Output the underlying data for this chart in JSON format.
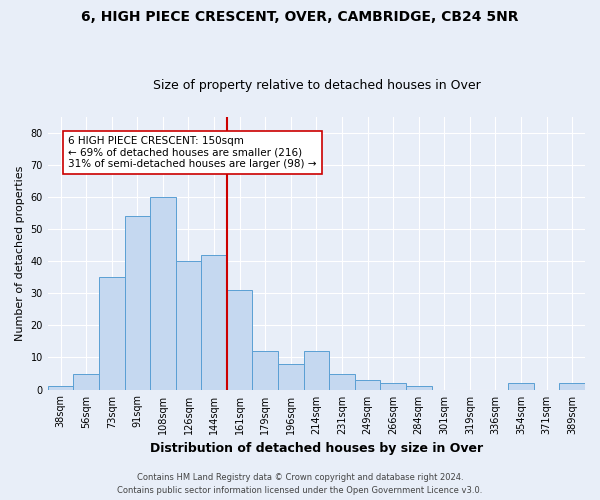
{
  "title": "6, HIGH PIECE CRESCENT, OVER, CAMBRIDGE, CB24 5NR",
  "subtitle": "Size of property relative to detached houses in Over",
  "xlabel": "Distribution of detached houses by size in Over",
  "ylabel": "Number of detached properties",
  "categories": [
    "38sqm",
    "56sqm",
    "73sqm",
    "91sqm",
    "108sqm",
    "126sqm",
    "144sqm",
    "161sqm",
    "179sqm",
    "196sqm",
    "214sqm",
    "231sqm",
    "249sqm",
    "266sqm",
    "284sqm",
    "301sqm",
    "319sqm",
    "336sqm",
    "354sqm",
    "371sqm",
    "389sqm"
  ],
  "values": [
    1,
    5,
    35,
    54,
    60,
    40,
    42,
    31,
    12,
    8,
    12,
    5,
    3,
    2,
    1,
    0,
    0,
    0,
    2,
    0,
    2
  ],
  "bar_color": "#c5d8f0",
  "bar_edge_color": "#5a9fd4",
  "vline_x_index": 7,
  "vline_color": "#cc0000",
  "ylim": [
    0,
    85
  ],
  "yticks": [
    0,
    10,
    20,
    30,
    40,
    50,
    60,
    70,
    80
  ],
  "annotation_text": "6 HIGH PIECE CRESCENT: 150sqm\n← 69% of detached houses are smaller (216)\n31% of semi-detached houses are larger (98) →",
  "annotation_box_color": "#ffffff",
  "annotation_box_edge": "#cc0000",
  "footer_line1": "Contains HM Land Registry data © Crown copyright and database right 2024.",
  "footer_line2": "Contains public sector information licensed under the Open Government Licence v3.0.",
  "background_color": "#e8eef8",
  "grid_color": "#ffffff",
  "title_fontsize": 10,
  "subtitle_fontsize": 9,
  "ylabel_fontsize": 8,
  "xlabel_fontsize": 9,
  "tick_fontsize": 7,
  "footer_fontsize": 6
}
